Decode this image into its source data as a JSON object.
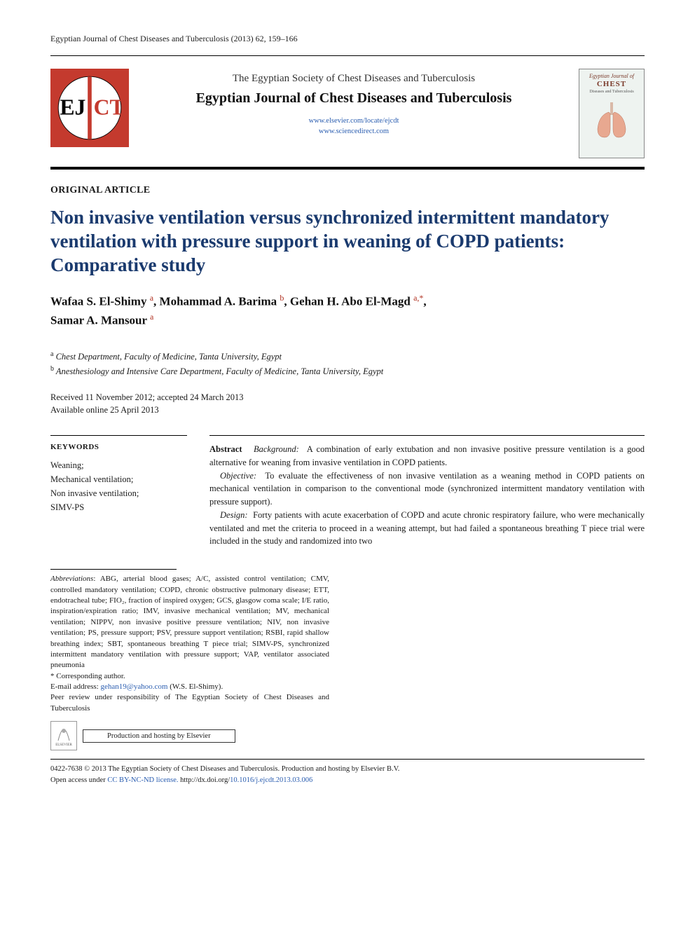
{
  "running_head": "Egyptian Journal of Chest Diseases and Tuberculosis (2013) 62, 159–166",
  "masthead": {
    "society": "The Egyptian Society of Chest Diseases and Tuberculosis",
    "journal": "Egyptian Journal of Chest Diseases and Tuberculosis",
    "link1": "www.elsevier.com/locate/ejcdt",
    "link2": "www.sciencedirect.com",
    "cover_title": "Egyptian Journal of\nCHEST",
    "cover_sub": "Diseases and Tuberculosis"
  },
  "article_type": "ORIGINAL ARTICLE",
  "title": "Non invasive ventilation versus synchronized intermittent mandatory ventilation with pressure support in weaning of COPD patients: Comparative study",
  "authors_html": "Wafaa S. El-Shimy <sup>a</sup>, Mohammad A. Barima <sup>b</sup>, Gehan H. Abo El-Magd <sup>a,*</sup>,<br>Samar A. Mansour <sup>a</sup>",
  "affiliations": [
    {
      "mark": "a",
      "text": "Chest Department, Faculty of Medicine, Tanta University, Egypt"
    },
    {
      "mark": "b",
      "text": "Anesthesiology and Intensive Care Department, Faculty of Medicine, Tanta University, Egypt"
    }
  ],
  "history": {
    "line1": "Received 11 November 2012; accepted 24 March 2013",
    "line2": "Available online 25 April 2013"
  },
  "keywords": {
    "head": "KEYWORDS",
    "items": [
      "Weaning;",
      "Mechanical ventilation;",
      "Non invasive ventilation;",
      "SIMV-PS"
    ]
  },
  "abstract": {
    "lead": "Abstract",
    "p1_label": "Background:",
    "p1": "A combination of early extubation and non invasive positive pressure ventilation is a good alternative for weaning from invasive ventilation in COPD patients.",
    "p2_label": "Objective:",
    "p2": "To evaluate the effectiveness of non invasive ventilation as a weaning method in COPD patients on mechanical ventilation in comparison to the conventional mode (synchronized intermittent mandatory ventilation with pressure support).",
    "p3_label": "Design:",
    "p3": "Forty patients with acute exacerbation of COPD and acute chronic respiratory failure, who were mechanically ventilated and met the criteria to proceed in a weaning attempt, but had failed a spontaneous breathing T piece trial were included in the study and randomized into two"
  },
  "footnotes": {
    "abbrev_label": "Abbreviations",
    "abbrev": ": ABG, arterial blood gases; A/C, assisted control ventilation; CMV, controlled mandatory ventilation; COPD, chronic obstructive pulmonary disease; ETT, endotracheal tube; FIO₂, fraction of inspired oxygen; GCS, glasgow coma scale; I/E ratio, inspiration/expiration ratio; IMV, invasive mechanical ventilation; MV, mechanical ventilation; NIPPV, non invasive positive pressure ventilation; NIV, non invasive ventilation; PS, pressure support; PSV, pressure support ventilation; RSBI, rapid shallow breathing index; SBT, spontaneous breathing T piece trial; SIMV-PS, synchronized intermittent mandatory ventilation with pressure support; VAP, ventilator associated pneumonia",
    "corr": "* Corresponding author.",
    "email_label": "E-mail address: ",
    "email": "gehan19@yahoo.com",
    "email_tail": " (W.S. El-Shimy).",
    "peer": "Peer review under responsibility of The Egyptian Society of Chest Diseases and Tuberculosis",
    "hosting": "Production and hosting by Elsevier",
    "elsevier_mini": "ELSEVIER"
  },
  "copyright": {
    "line1": "0422-7638 © 2013 The Egyptian Society of Chest Diseases and Tuberculosis. Production and hosting by Elsevier B.V.",
    "line2a": "Open access under ",
    "cc": "CC BY-NC-ND license.",
    "doi_label": " http://dx.doi.org/",
    "doi": "10.1016/j.ejcdt.2013.03.006"
  },
  "colors": {
    "title_blue": "#1a3a6e",
    "sup_red": "#b03020",
    "link_blue": "#2a5db0"
  }
}
